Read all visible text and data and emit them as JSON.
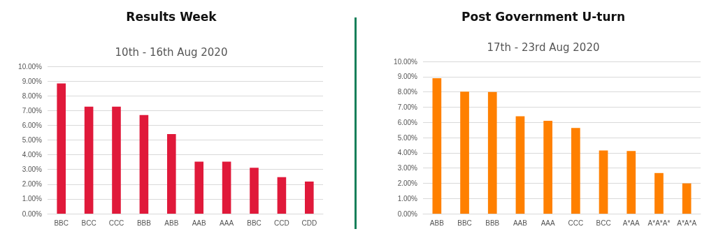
{
  "chart_data": [
    {
      "type": "bar",
      "title": "Results Week",
      "subtitle": "10th - 16th Aug 2020",
      "categories": [
        "BBC",
        "BCC",
        "CCC",
        "BBB",
        "ABB",
        "AAB",
        "AAA",
        "BBC",
        "CCD",
        "CDD"
      ],
      "values": [
        8.84,
        7.26,
        7.26,
        6.69,
        5.4,
        3.53,
        3.53,
        3.12,
        2.48,
        2.18
      ],
      "color": "#e0193a",
      "ylim": [
        0,
        10
      ],
      "yticks": [
        {
          "value": 0,
          "label": "0.00%"
        },
        {
          "value": 1,
          "label": "1.00%"
        },
        {
          "value": 2,
          "label": "2.00%"
        },
        {
          "value": 3,
          "label": "3.00%"
        },
        {
          "value": 4,
          "label": "4.00%"
        },
        {
          "value": 5,
          "label": "5.00%"
        },
        {
          "value": 6,
          "label": "6.00%"
        },
        {
          "value": 7,
          "label": "7.00%"
        },
        {
          "value": 8,
          "label": "8.00%"
        },
        {
          "value": 9,
          "label": "9.00%"
        },
        {
          "value": 10,
          "label": "10.00%"
        }
      ],
      "grid": true
    },
    {
      "type": "bar",
      "title": "Post Government U-turn",
      "subtitle": "17th - 23rd Aug 2020",
      "categories": [
        "ABB",
        "BBC",
        "BBB",
        "AAB",
        "AAA",
        "CCC",
        "BCC",
        "A*AA",
        "A*A*A*",
        "A*A*A"
      ],
      "values": [
        8.9,
        8.02,
        7.99,
        6.4,
        6.1,
        5.63,
        4.15,
        4.12,
        2.67,
        1.99
      ],
      "color": "#ff8000",
      "ylim": [
        0,
        10
      ],
      "yticks": [
        {
          "value": 0,
          "label": "0.00%"
        },
        {
          "value": 1,
          "label": "1.00%"
        },
        {
          "value": 2,
          "label": "2.00%"
        },
        {
          "value": 3,
          "label": "3.00%"
        },
        {
          "value": 4,
          "label": "4.00%"
        },
        {
          "value": 5,
          "label": "5.00%"
        },
        {
          "value": 6,
          "label": "6.00%"
        },
        {
          "value": 7,
          "label": "7.00%"
        },
        {
          "value": 8,
          "label": "8.00%"
        },
        {
          "value": 9,
          "label": "9.00%"
        },
        {
          "value": 10,
          "label": "10.00%"
        }
      ],
      "grid": true
    }
  ]
}
